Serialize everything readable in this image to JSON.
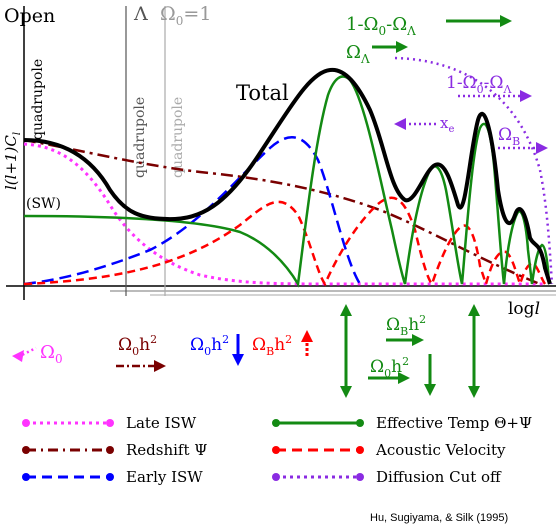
{
  "labels": {
    "open": "Open",
    "lambda": "Λ",
    "omega0_eq1": "Ω",
    "omega0_eq1_sub": "0",
    "omega0_eq1_rest": "=1",
    "quadrupole": "quadrupole",
    "ylabel": "l(l+1)C",
    "ylabel_sub": "l",
    "xlabel": "log",
    "xlabel_italic": "l",
    "sw": "(SW)",
    "total": "Total",
    "xe": "x",
    "xe_sub": "e",
    "green_top_1": "1-Ω",
    "green_top_sub1": "0",
    "green_top_2": "-Ω",
    "green_top_sub2": "Λ",
    "green_omega_lambda": "Ω",
    "green_omega_lambda_sub": "Λ",
    "purple_top_1": "1-Ω",
    "purple_top_sub1": "0",
    "purple_top_2": "-Ω",
    "purple_top_sub2": "Λ",
    "purple_omega_b": "Ω",
    "purple_omega_b_sub": "B",
    "omega0": "Ω",
    "omega0_sub": "0",
    "omega0h2_red": "Ω",
    "omega0h2_red_sub": "0",
    "omega0h2_red_rest": "h",
    "omega0h2_red_sup": "2",
    "omega0h2_blue": "Ω",
    "omega0h2_blue_sub": "0",
    "omega0h2_blue_rest": "h",
    "omega0h2_blue_sup": "2",
    "omegaBh2_red": "Ω",
    "omegaBh2_red_sub": "B",
    "omegaBh2_red_rest": "h",
    "omegaBh2_red_sup": "2",
    "omegaBh2_green": "Ω",
    "omegaBh2_green_sub": "B",
    "omegaBh2_green_rest": "h",
    "omegaBh2_green_sup": "2",
    "omega0h2_green": "Ω",
    "omega0h2_green_sub": "0",
    "omega0h2_green_rest": "h",
    "omega0h2_green_sup": "2",
    "citation": "Hu, Sugiyama, & Silk (1995)"
  },
  "legend": [
    {
      "label": "Late ISW",
      "color": "#ff33ff",
      "dash": "dot"
    },
    {
      "label": "Redshift Ψ",
      "color": "#7a0000",
      "dash": "dashdot"
    },
    {
      "label": "Early ISW",
      "color": "#0000ff",
      "dash": "dash"
    },
    {
      "label": "Effective Temp Θ+Ψ",
      "color": "#138a13",
      "dash": "solid"
    },
    {
      "label": "Acoustic Velocity",
      "color": "#ff0000",
      "dash": "dash"
    },
    {
      "label": "Diffusion Cut off",
      "color": "#8a2be2",
      "dash": "dot"
    }
  ],
  "colors": {
    "total": "#000000",
    "late_isw": "#ff33ff",
    "redshift": "#7a0000",
    "early_isw": "#0000ff",
    "effective_temp": "#138a13",
    "acoustic_velocity": "#ff0000",
    "diffusion": "#8a2be2",
    "grey": "#999999"
  }
}
